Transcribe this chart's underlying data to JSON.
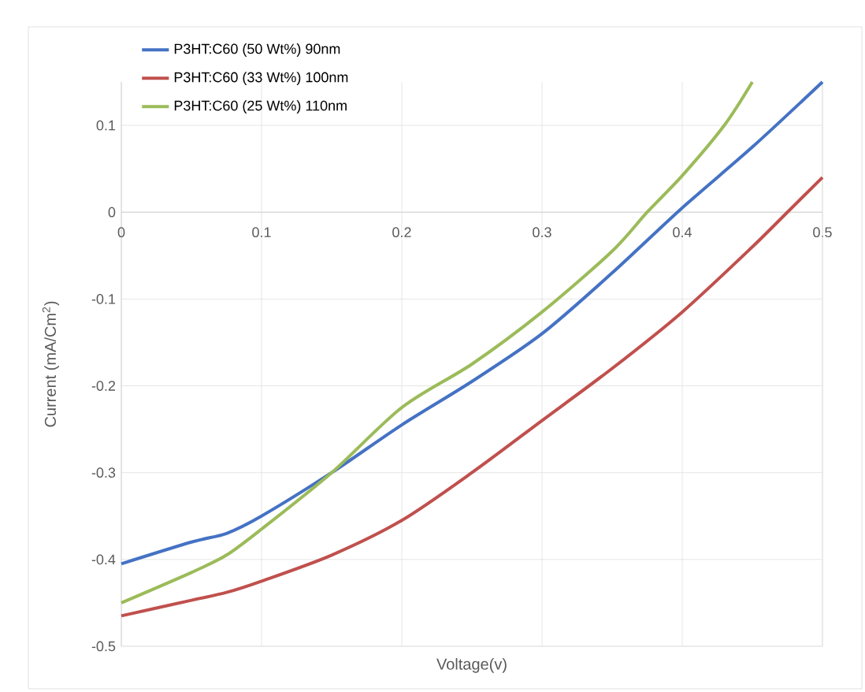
{
  "chart_data": {
    "type": "line",
    "xlabel": "Voltage(v)",
    "ylabel": "Current (mA/Cm$^{2}$)",
    "xlim": [
      0,
      0.5
    ],
    "ylim": [
      -0.5,
      0.15
    ],
    "xticks": [
      0,
      0.1,
      0.2,
      0.3,
      0.4,
      0.5
    ],
    "yticks": [
      -0.5,
      -0.4,
      -0.3,
      -0.2,
      -0.1,
      0,
      0.1
    ],
    "grid": true,
    "legend": "top left",
    "marker": "none",
    "line_style": "solid",
    "series": [
      {
        "name": "P3HT:C60 (50 Wt%) 90nm",
        "color": "#4472c4",
        "x": [
          0,
          0.05,
          0.075,
          0.1,
          0.15,
          0.2,
          0.25,
          0.3,
          0.35,
          0.4,
          0.45,
          0.5
        ],
        "values": [
          -0.405,
          -0.38,
          -0.37,
          -0.35,
          -0.3,
          -0.245,
          -0.195,
          -0.14,
          -0.07,
          0.005,
          0.075,
          0.15
        ]
      },
      {
        "name": "P3HT:C60 (33 Wt%) 100nm",
        "color": "#c0504d",
        "x": [
          0,
          0.05,
          0.075,
          0.1,
          0.15,
          0.2,
          0.25,
          0.3,
          0.35,
          0.4,
          0.45,
          0.475,
          0.5
        ],
        "values": [
          -0.465,
          -0.447,
          -0.438,
          -0.425,
          -0.395,
          -0.355,
          -0.3,
          -0.24,
          -0.18,
          -0.115,
          -0.04,
          0.0,
          0.04
        ]
      },
      {
        "name": "P3HT:C60 (25 Wt%) 110nm",
        "color": "#9bbb59",
        "x": [
          0,
          0.05,
          0.075,
          0.1,
          0.15,
          0.2,
          0.25,
          0.3,
          0.35,
          0.375,
          0.4,
          0.43,
          0.45
        ],
        "values": [
          -0.45,
          -0.415,
          -0.395,
          -0.365,
          -0.3,
          -0.225,
          -0.175,
          -0.115,
          -0.045,
          0.0,
          0.042,
          0.1,
          0.15
        ]
      }
    ]
  }
}
